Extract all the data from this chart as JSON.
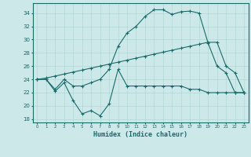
{
  "xlabel": "Humidex (Indice chaleur)",
  "bg_color": "#cce8e8",
  "line_color": "#1a6b6b",
  "grid_color": "#aad4d4",
  "xlim": [
    -0.5,
    23.5
  ],
  "ylim": [
    17.5,
    35.5
  ],
  "yticks": [
    18,
    20,
    22,
    24,
    26,
    28,
    30,
    32,
    34
  ],
  "xticks": [
    0,
    1,
    2,
    3,
    4,
    5,
    6,
    7,
    8,
    9,
    10,
    11,
    12,
    13,
    14,
    15,
    16,
    17,
    18,
    19,
    20,
    21,
    22,
    23
  ],
  "line1_x": [
    0,
    1,
    2,
    3,
    4,
    5,
    6,
    7,
    8,
    9,
    10,
    11,
    12,
    13,
    14,
    15,
    16,
    17,
    18,
    19,
    20,
    21,
    22,
    23
  ],
  "line1_y": [
    24.0,
    24.0,
    22.2,
    23.5,
    20.8,
    18.8,
    19.3,
    18.5,
    20.3,
    25.5,
    23.0,
    23.0,
    23.0,
    23.0,
    23.0,
    23.0,
    23.0,
    22.5,
    22.5,
    22.0,
    22.0,
    22.0,
    22.0,
    22.0
  ],
  "line2_x": [
    0,
    1,
    2,
    3,
    4,
    5,
    6,
    7,
    8,
    9,
    10,
    11,
    12,
    13,
    14,
    15,
    16,
    17,
    18,
    19,
    20,
    21,
    22,
    23
  ],
  "line2_y": [
    24.0,
    24.0,
    22.5,
    24.0,
    23.0,
    23.0,
    23.5,
    24.0,
    25.5,
    29.0,
    31.0,
    32.0,
    33.5,
    34.5,
    34.5,
    33.8,
    34.2,
    34.3,
    34.0,
    29.5,
    26.0,
    25.0,
    22.0,
    22.0
  ],
  "line3_x": [
    0,
    1,
    2,
    3,
    4,
    5,
    6,
    7,
    8,
    9,
    10,
    11,
    12,
    13,
    14,
    15,
    16,
    17,
    18,
    19,
    20,
    21,
    22,
    23
  ],
  "line3_y": [
    24.0,
    24.2,
    24.5,
    24.8,
    25.1,
    25.4,
    25.7,
    26.0,
    26.3,
    26.6,
    26.9,
    27.2,
    27.5,
    27.8,
    28.1,
    28.4,
    28.7,
    29.0,
    29.3,
    29.6,
    29.6,
    26.0,
    25.0,
    22.0
  ]
}
